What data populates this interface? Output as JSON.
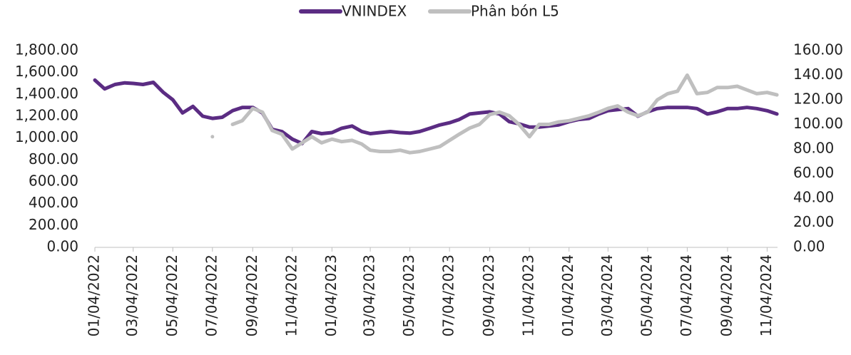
{
  "chart_data": {
    "type": "line",
    "legend": "top",
    "x": [
      "01/04/2022",
      "01/19/2022",
      "02/04/2022",
      "02/19/2022",
      "03/04/2022",
      "03/19/2022",
      "04/04/2022",
      "04/19/2022",
      "05/04/2022",
      "05/19/2022",
      "06/04/2022",
      "06/19/2022",
      "07/04/2022",
      "07/19/2022",
      "08/04/2022",
      "08/19/2022",
      "09/04/2022",
      "09/19/2022",
      "10/04/2022",
      "10/19/2022",
      "11/04/2022",
      "11/19/2022",
      "12/04/2022",
      "12/19/2022",
      "01/04/2023",
      "01/19/2023",
      "02/04/2023",
      "02/19/2023",
      "03/04/2023",
      "03/19/2023",
      "04/04/2023",
      "04/19/2023",
      "05/04/2023",
      "05/19/2023",
      "06/04/2023",
      "06/19/2023",
      "07/04/2023",
      "07/19/2023",
      "08/04/2023",
      "08/19/2023",
      "09/04/2023",
      "09/19/2023",
      "10/04/2023",
      "10/19/2023",
      "11/04/2023",
      "11/19/2023",
      "12/04/2023",
      "12/19/2023",
      "01/04/2024",
      "01/19/2024",
      "02/04/2024",
      "02/19/2024",
      "03/04/2024",
      "03/19/2024",
      "04/04/2024",
      "04/19/2024",
      "05/04/2024",
      "05/19/2024",
      "06/04/2024",
      "06/19/2024",
      "07/04/2024",
      "07/19/2024",
      "08/04/2024",
      "08/19/2024",
      "09/04/2024",
      "09/19/2024",
      "10/04/2024",
      "10/19/2024",
      "11/04/2024",
      "11/19/2024"
    ],
    "xlim": [
      "01/04/2022",
      "11/20/2024"
    ],
    "xticks": [
      "01/04/2022",
      "03/04/2022",
      "05/04/2022",
      "07/04/2022",
      "09/04/2022",
      "11/04/2022",
      "01/04/2023",
      "03/04/2023",
      "05/04/2023",
      "07/04/2023",
      "09/04/2023",
      "11/04/2023",
      "01/04/2024",
      "03/04/2024",
      "05/04/2024",
      "07/04/2024",
      "09/04/2024",
      "11/04/2024"
    ],
    "ylim": [
      0,
      1800
    ],
    "yticks": [
      {
        "value": 0,
        "label": "0.00"
      },
      {
        "value": 200,
        "label": "200.00"
      },
      {
        "value": 400,
        "label": "400.00"
      },
      {
        "value": 600,
        "label": "600.00"
      },
      {
        "value": 800,
        "label": "800.00"
      },
      {
        "value": 1000,
        "label": "1,000.00"
      },
      {
        "value": 1200,
        "label": "1,200.00"
      },
      {
        "value": 1400,
        "label": "1,400.00"
      },
      {
        "value": 1600,
        "label": "1,600.00"
      },
      {
        "value": 1800,
        "label": "1,800.00"
      }
    ],
    "y2lim": [
      0,
      160
    ],
    "y2ticks": [
      {
        "value": 0,
        "label": "0.00"
      },
      {
        "value": 20,
        "label": "20.00"
      },
      {
        "value": 40,
        "label": "40.00"
      },
      {
        "value": 60,
        "label": "60.00"
      },
      {
        "value": 80,
        "label": "80.00"
      },
      {
        "value": 100,
        "label": "100.00"
      },
      {
        "value": 120,
        "label": "120.00"
      },
      {
        "value": 140,
        "label": "140.00"
      },
      {
        "value": 160,
        "label": "160.00"
      }
    ],
    "series": [
      {
        "name": "VNINDEX",
        "color": "#5b2c83",
        "values": [
          1530,
          1450,
          1490,
          1505,
          1500,
          1490,
          1510,
          1420,
          1350,
          1230,
          1290,
          1200,
          1180,
          1190,
          1250,
          1280,
          1280,
          1230,
          1080,
          1060,
          990,
          950,
          1060,
          1040,
          1050,
          1090,
          1110,
          1060,
          1040,
          1050,
          1060,
          1050,
          1045,
          1060,
          1090,
          1120,
          1140,
          1170,
          1220,
          1230,
          1240,
          1220,
          1150,
          1130,
          1100,
          1100,
          1110,
          1120,
          1150,
          1170,
          1180,
          1220,
          1250,
          1260,
          1270,
          1200,
          1240,
          1270,
          1280,
          1280,
          1280,
          1270,
          1220,
          1240,
          1270,
          1270,
          1280,
          1270,
          1250,
          1220
        ]
      },
      {
        "name": "Phân bón L5",
        "color": "#bfbfbf",
        "axis": "y2",
        "values": [
          null,
          null,
          null,
          null,
          null,
          null,
          null,
          null,
          null,
          null,
          null,
          null,
          90,
          null,
          100,
          103,
          113,
          110,
          95,
          92,
          80,
          85,
          90,
          85,
          88,
          86,
          87,
          84,
          79,
          78,
          78,
          79,
          77,
          78,
          80,
          82,
          87,
          92,
          97,
          100,
          108,
          110,
          107,
          100,
          90,
          100,
          100,
          102,
          103,
          105,
          107,
          110,
          113,
          115,
          110,
          107,
          110,
          120,
          125,
          127,
          140,
          125,
          126,
          130,
          130,
          131,
          128,
          125,
          126,
          124
        ]
      }
    ]
  }
}
